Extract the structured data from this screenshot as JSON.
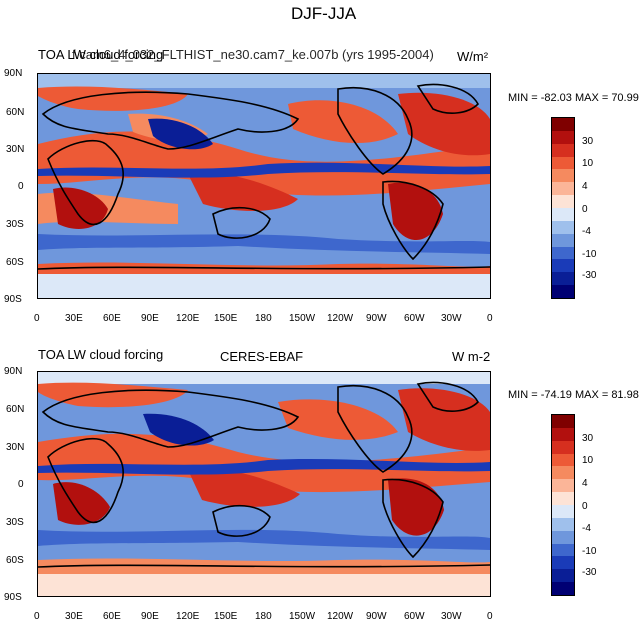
{
  "page_title": "DJF-JJA",
  "panels": [
    {
      "left_title": "TOA LW cloud forcing",
      "center_title": "f.cam6_4_032_FLTHIST_ne30.cam7_ke.007b (yrs 1995-2004)",
      "units": "W/m²",
      "stats": "MIN = -82.03 MAX =  70.99"
    },
    {
      "left_title": "TOA LW cloud forcing",
      "center_title": "CERES-EBAF",
      "units": "W m-2",
      "stats": "MIN = -74.19 MAX =  81.98"
    }
  ],
  "lat_labels": [
    "90N",
    "60N",
    "30N",
    "0",
    "30S",
    "60S",
    "90S"
  ],
  "lon_labels": [
    "0",
    "30E",
    "60E",
    "90E",
    "120E",
    "150E",
    "180",
    "150W",
    "120W",
    "90W",
    "60W",
    "30W",
    "0"
  ],
  "colorbar": {
    "labels": [
      "30",
      "10",
      "4",
      "0",
      "-4",
      "-10",
      "-30"
    ],
    "colors": [
      "#7f0000",
      "#b2100e",
      "#d62f1f",
      "#ed5a36",
      "#f58a5f",
      "#fbb598",
      "#fde3d6",
      "#dce8f8",
      "#9fc0ec",
      "#6f97dc",
      "#3e67cd",
      "#1a3bb8",
      "#0a1e96",
      "#000073"
    ]
  }
}
